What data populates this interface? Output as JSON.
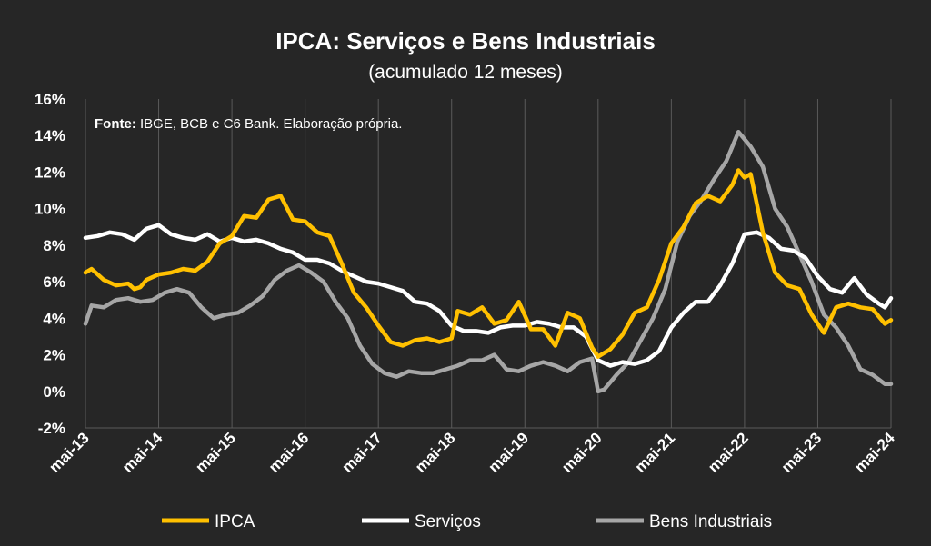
{
  "chart_data": {
    "type": "line",
    "title": "IPCA: Serviços e Bens Industriais",
    "subtitle": "(acumulado 12 meses)",
    "source_label": "Fonte:",
    "source_text": " IBGE, BCB e C6 Bank. Elaboração própria.",
    "ylim": [
      -2,
      16
    ],
    "yticks": [
      -2,
      0,
      2,
      4,
      6,
      8,
      10,
      12,
      14,
      16
    ],
    "ytick_labels": [
      "-2%",
      "0%",
      "2%",
      "4%",
      "6%",
      "8%",
      "10%",
      "12%",
      "14%",
      "16%"
    ],
    "xtick_labels": [
      "mai-13",
      "mai-14",
      "mai-15",
      "mai-16",
      "mai-17",
      "mai-18",
      "mai-19",
      "mai-20",
      "mai-21",
      "mai-22",
      "mai-23",
      "mai-24"
    ],
    "grid": "vertical",
    "legend_position": "bottom",
    "colors": {
      "background": "#262626",
      "text": "#ffffff",
      "grid": "#5a5a5a"
    },
    "series": [
      {
        "name": "IPCA",
        "color": "#FFC000",
        "points": [
          [
            "2013-05",
            6.5
          ],
          [
            "2013-06",
            6.7
          ],
          [
            "2013-08",
            6.1
          ],
          [
            "2013-10",
            5.8
          ],
          [
            "2013-12",
            5.9
          ],
          [
            "2014-01",
            5.6
          ],
          [
            "2014-02",
            5.7
          ],
          [
            "2014-03",
            6.1
          ],
          [
            "2014-05",
            6.4
          ],
          [
            "2014-07",
            6.5
          ],
          [
            "2014-09",
            6.7
          ],
          [
            "2014-11",
            6.6
          ],
          [
            "2015-01",
            7.1
          ],
          [
            "2015-03",
            8.1
          ],
          [
            "2015-05",
            8.5
          ],
          [
            "2015-07",
            9.6
          ],
          [
            "2015-09",
            9.5
          ],
          [
            "2015-11",
            10.5
          ],
          [
            "2016-01",
            10.7
          ],
          [
            "2016-03",
            9.4
          ],
          [
            "2016-05",
            9.3
          ],
          [
            "2016-07",
            8.7
          ],
          [
            "2016-09",
            8.5
          ],
          [
            "2016-11",
            7.0
          ],
          [
            "2017-01",
            5.4
          ],
          [
            "2017-03",
            4.6
          ],
          [
            "2017-05",
            3.6
          ],
          [
            "2017-07",
            2.7
          ],
          [
            "2017-09",
            2.5
          ],
          [
            "2017-11",
            2.8
          ],
          [
            "2018-01",
            2.9
          ],
          [
            "2018-03",
            2.7
          ],
          [
            "2018-05",
            2.9
          ],
          [
            "2018-06",
            4.4
          ],
          [
            "2018-08",
            4.2
          ],
          [
            "2018-10",
            4.6
          ],
          [
            "2018-12",
            3.7
          ],
          [
            "2019-02",
            3.9
          ],
          [
            "2019-04",
            4.9
          ],
          [
            "2019-06",
            3.4
          ],
          [
            "2019-08",
            3.4
          ],
          [
            "2019-10",
            2.5
          ],
          [
            "2019-12",
            4.3
          ],
          [
            "2020-02",
            4.0
          ],
          [
            "2020-04",
            2.4
          ],
          [
            "2020-05",
            1.9
          ],
          [
            "2020-07",
            2.3
          ],
          [
            "2020-09",
            3.1
          ],
          [
            "2020-11",
            4.3
          ],
          [
            "2021-01",
            4.6
          ],
          [
            "2021-03",
            6.1
          ],
          [
            "2021-05",
            8.1
          ],
          [
            "2021-07",
            9.0
          ],
          [
            "2021-09",
            10.3
          ],
          [
            "2021-11",
            10.7
          ],
          [
            "2022-01",
            10.4
          ],
          [
            "2022-03",
            11.3
          ],
          [
            "2022-04",
            12.1
          ],
          [
            "2022-05",
            11.7
          ],
          [
            "2022-06",
            11.9
          ],
          [
            "2022-08",
            8.7
          ],
          [
            "2022-10",
            6.5
          ],
          [
            "2022-12",
            5.8
          ],
          [
            "2023-02",
            5.6
          ],
          [
            "2023-04",
            4.2
          ],
          [
            "2023-06",
            3.2
          ],
          [
            "2023-08",
            4.6
          ],
          [
            "2023-10",
            4.8
          ],
          [
            "2023-12",
            4.6
          ],
          [
            "2024-02",
            4.5
          ],
          [
            "2024-04",
            3.7
          ],
          [
            "2024-05",
            3.9
          ]
        ]
      },
      {
        "name": "Serviços",
        "color": "#FFFFFF",
        "points": [
          [
            "2013-05",
            8.4
          ],
          [
            "2013-07",
            8.5
          ],
          [
            "2013-09",
            8.7
          ],
          [
            "2013-11",
            8.6
          ],
          [
            "2014-01",
            8.3
          ],
          [
            "2014-03",
            8.9
          ],
          [
            "2014-05",
            9.1
          ],
          [
            "2014-07",
            8.6
          ],
          [
            "2014-09",
            8.4
          ],
          [
            "2014-11",
            8.3
          ],
          [
            "2015-01",
            8.6
          ],
          [
            "2015-03",
            8.2
          ],
          [
            "2015-05",
            8.4
          ],
          [
            "2015-07",
            8.2
          ],
          [
            "2015-09",
            8.3
          ],
          [
            "2015-11",
            8.1
          ],
          [
            "2016-01",
            7.8
          ],
          [
            "2016-03",
            7.6
          ],
          [
            "2016-05",
            7.2
          ],
          [
            "2016-07",
            7.2
          ],
          [
            "2016-09",
            7.0
          ],
          [
            "2016-11",
            6.6
          ],
          [
            "2017-01",
            6.3
          ],
          [
            "2017-03",
            6.0
          ],
          [
            "2017-05",
            5.9
          ],
          [
            "2017-07",
            5.7
          ],
          [
            "2017-09",
            5.5
          ],
          [
            "2017-11",
            4.9
          ],
          [
            "2018-01",
            4.8
          ],
          [
            "2018-03",
            4.4
          ],
          [
            "2018-05",
            3.6
          ],
          [
            "2018-07",
            3.3
          ],
          [
            "2018-09",
            3.3
          ],
          [
            "2018-11",
            3.2
          ],
          [
            "2019-01",
            3.5
          ],
          [
            "2019-03",
            3.6
          ],
          [
            "2019-05",
            3.6
          ],
          [
            "2019-07",
            3.8
          ],
          [
            "2019-09",
            3.7
          ],
          [
            "2019-11",
            3.5
          ],
          [
            "2020-01",
            3.5
          ],
          [
            "2020-03",
            3.0
          ],
          [
            "2020-05",
            1.7
          ],
          [
            "2020-07",
            1.4
          ],
          [
            "2020-09",
            1.6
          ],
          [
            "2020-11",
            1.5
          ],
          [
            "2021-01",
            1.7
          ],
          [
            "2021-03",
            2.2
          ],
          [
            "2021-05",
            3.5
          ],
          [
            "2021-07",
            4.3
          ],
          [
            "2021-09",
            4.9
          ],
          [
            "2021-11",
            4.9
          ],
          [
            "2022-01",
            5.8
          ],
          [
            "2022-03",
            7.0
          ],
          [
            "2022-05",
            8.6
          ],
          [
            "2022-07",
            8.7
          ],
          [
            "2022-09",
            8.4
          ],
          [
            "2022-11",
            7.8
          ],
          [
            "2023-01",
            7.7
          ],
          [
            "2023-03",
            7.3
          ],
          [
            "2023-05",
            6.3
          ],
          [
            "2023-07",
            5.6
          ],
          [
            "2023-09",
            5.4
          ],
          [
            "2023-11",
            6.2
          ],
          [
            "2024-01",
            5.3
          ],
          [
            "2024-03",
            4.8
          ],
          [
            "2024-04",
            4.6
          ],
          [
            "2024-05",
            5.1
          ]
        ]
      },
      {
        "name": "Bens Industriais",
        "color": "#A6A6A6",
        "points": [
          [
            "2013-05",
            3.7
          ],
          [
            "2013-06",
            4.7
          ],
          [
            "2013-08",
            4.6
          ],
          [
            "2013-10",
            5.0
          ],
          [
            "2013-12",
            5.1
          ],
          [
            "2014-02",
            4.9
          ],
          [
            "2014-04",
            5.0
          ],
          [
            "2014-06",
            5.4
          ],
          [
            "2014-08",
            5.6
          ],
          [
            "2014-10",
            5.4
          ],
          [
            "2014-12",
            4.6
          ],
          [
            "2015-02",
            4.0
          ],
          [
            "2015-04",
            4.2
          ],
          [
            "2015-06",
            4.3
          ],
          [
            "2015-08",
            4.7
          ],
          [
            "2015-10",
            5.2
          ],
          [
            "2015-12",
            6.1
          ],
          [
            "2016-02",
            6.6
          ],
          [
            "2016-04",
            6.9
          ],
          [
            "2016-06",
            6.5
          ],
          [
            "2016-08",
            6.0
          ],
          [
            "2016-10",
            4.9
          ],
          [
            "2016-12",
            4.0
          ],
          [
            "2017-02",
            2.5
          ],
          [
            "2017-04",
            1.5
          ],
          [
            "2017-06",
            1.0
          ],
          [
            "2017-08",
            0.8
          ],
          [
            "2017-10",
            1.1
          ],
          [
            "2017-12",
            1.0
          ],
          [
            "2018-02",
            1.0
          ],
          [
            "2018-04",
            1.2
          ],
          [
            "2018-06",
            1.4
          ],
          [
            "2018-08",
            1.7
          ],
          [
            "2018-10",
            1.7
          ],
          [
            "2018-12",
            2.0
          ],
          [
            "2019-02",
            1.2
          ],
          [
            "2019-04",
            1.1
          ],
          [
            "2019-06",
            1.4
          ],
          [
            "2019-08",
            1.6
          ],
          [
            "2019-10",
            1.4
          ],
          [
            "2019-12",
            1.1
          ],
          [
            "2020-02",
            1.6
          ],
          [
            "2020-04",
            1.8
          ],
          [
            "2020-05",
            0.0
          ],
          [
            "2020-06",
            0.1
          ],
          [
            "2020-08",
            0.9
          ],
          [
            "2020-10",
            1.6
          ],
          [
            "2020-12",
            2.8
          ],
          [
            "2021-02",
            4.0
          ],
          [
            "2021-04",
            5.6
          ],
          [
            "2021-06",
            8.2
          ],
          [
            "2021-08",
            9.6
          ],
          [
            "2021-10",
            10.5
          ],
          [
            "2021-12",
            11.6
          ],
          [
            "2022-02",
            12.6
          ],
          [
            "2022-04",
            14.2
          ],
          [
            "2022-06",
            13.4
          ],
          [
            "2022-08",
            12.3
          ],
          [
            "2022-10",
            10.0
          ],
          [
            "2022-12",
            9.0
          ],
          [
            "2023-02",
            7.5
          ],
          [
            "2023-04",
            6.0
          ],
          [
            "2023-06",
            4.2
          ],
          [
            "2023-08",
            3.5
          ],
          [
            "2023-10",
            2.5
          ],
          [
            "2023-12",
            1.2
          ],
          [
            "2024-02",
            0.9
          ],
          [
            "2024-04",
            0.4
          ],
          [
            "2024-05",
            0.4
          ]
        ]
      }
    ]
  }
}
